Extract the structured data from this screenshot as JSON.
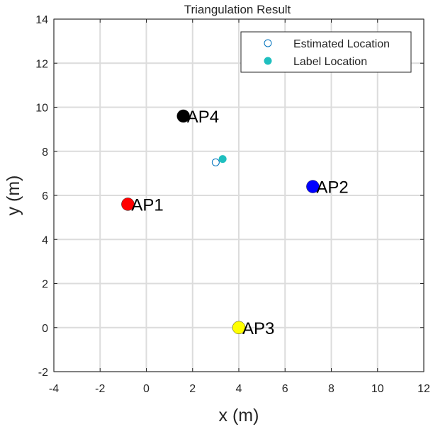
{
  "chart_data": {
    "type": "scatter",
    "title": "Triangulation Result",
    "xlabel": "x (m)",
    "ylabel": "y (m)",
    "xlim": [
      -4,
      12
    ],
    "ylim": [
      -2,
      14
    ],
    "xticks": [
      -4,
      -2,
      0,
      2,
      4,
      6,
      8,
      10,
      12
    ],
    "yticks": [
      -2,
      0,
      2,
      4,
      6,
      8,
      10,
      12,
      14
    ],
    "grid": true,
    "access_points": [
      {
        "label": "AP1",
        "x": -0.8,
        "y": 5.6,
        "color": "#ff0000"
      },
      {
        "label": "AP2",
        "x": 7.2,
        "y": 6.4,
        "color": "#0000ff"
      },
      {
        "label": "AP3",
        "x": 4.0,
        "y": 0.0,
        "color": "#ffff00"
      },
      {
        "label": "AP4",
        "x": 1.6,
        "y": 9.6,
        "color": "#000000"
      }
    ],
    "series": [
      {
        "name": "Estimated Location",
        "marker": "open-circle",
        "color": "#0072bd",
        "points": [
          {
            "x": 3.0,
            "y": 7.5
          }
        ]
      },
      {
        "name": "Label Location",
        "marker": "filled-circle",
        "color": "#1fbfbf",
        "points": [
          {
            "x": 3.3,
            "y": 7.65
          }
        ]
      }
    ],
    "legend": {
      "position": "top-right",
      "entries": [
        "Estimated Location",
        "Label Location"
      ]
    }
  }
}
